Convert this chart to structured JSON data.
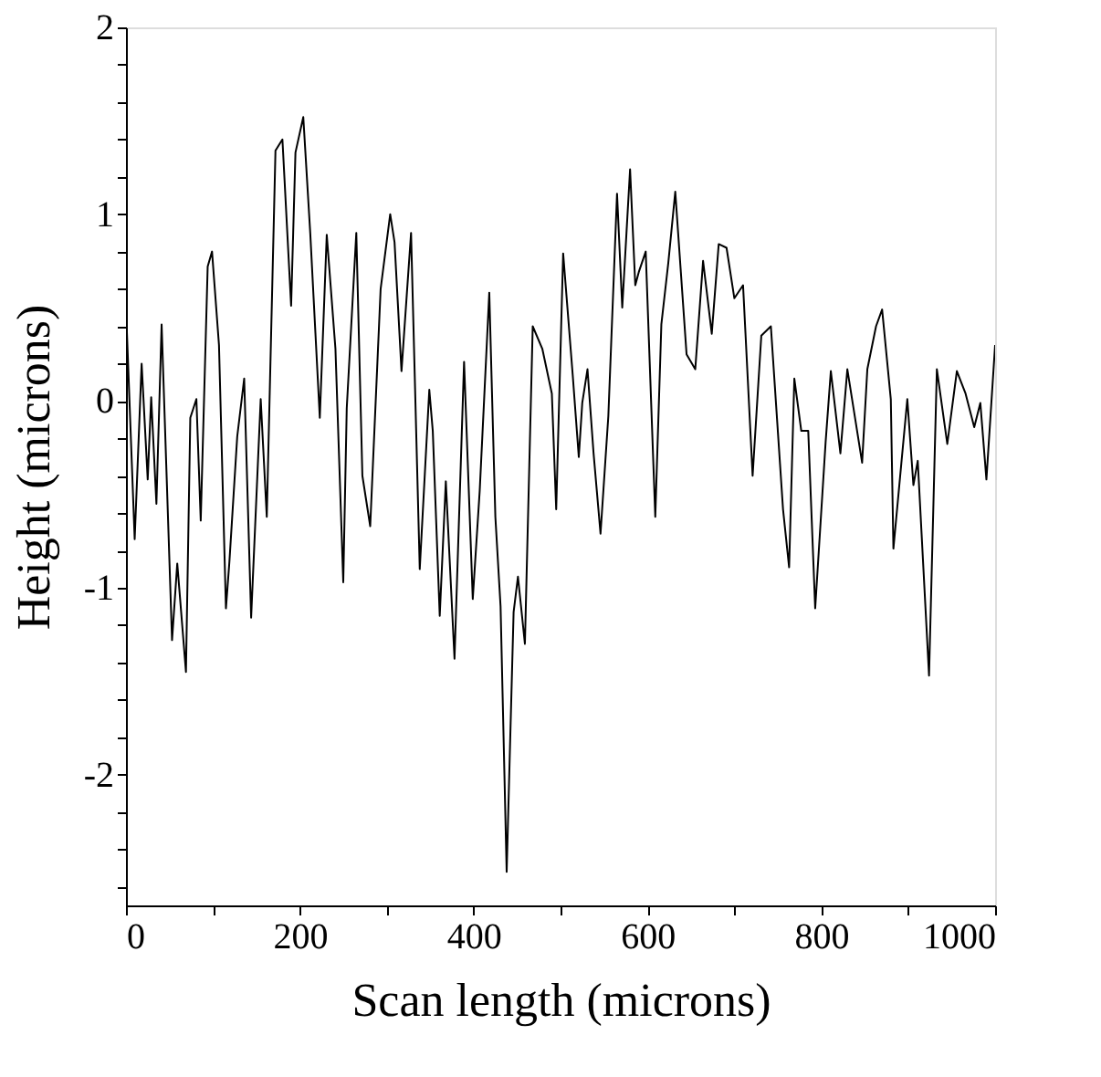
{
  "chart_data": {
    "type": "line",
    "xlabel": "Scan length (microns)",
    "ylabel": "Height (microns)",
    "xlim": [
      0,
      1000
    ],
    "ylim": [
      -2.7,
      2
    ],
    "xticks": [
      0,
      {
        "value": 100,
        "label": null
      },
      200,
      {
        "value": 300,
        "label": null
      },
      400,
      {
        "value": 500,
        "label": null
      },
      600,
      {
        "value": 700,
        "label": null
      },
      800,
      {
        "value": 900,
        "label": null
      },
      1000
    ],
    "yticks": [
      {
        "value": -2.6,
        "label": null
      },
      {
        "value": -2.4,
        "label": null
      },
      {
        "value": -2.2,
        "label": null
      },
      -2,
      {
        "value": -1.8,
        "label": null
      },
      {
        "value": -1.6,
        "label": null
      },
      {
        "value": -1.4,
        "label": null
      },
      {
        "value": -1.2,
        "label": null
      },
      -1,
      {
        "value": -0.8,
        "label": null
      },
      {
        "value": -0.6,
        "label": null
      },
      {
        "value": -0.4,
        "label": null
      },
      {
        "value": -0.2,
        "label": null
      },
      0,
      {
        "value": 0.2,
        "label": null
      },
      {
        "value": 0.4,
        "label": null
      },
      {
        "value": 0.6,
        "label": null
      },
      {
        "value": 0.8,
        "label": null
      },
      1,
      {
        "value": 1.2,
        "label": null
      },
      {
        "value": 1.4,
        "label": null
      },
      {
        "value": 1.6,
        "label": null
      },
      {
        "value": 1.8,
        "label": null
      },
      2
    ],
    "grid": false,
    "line_style": "solid",
    "series": [
      {
        "color": "#000000",
        "x": [
          0,
          10,
          18,
          25,
          29,
          35,
          41,
          53,
          59,
          69,
          74,
          81,
          86,
          94,
          99,
          107,
          115,
          119,
          128,
          136,
          144,
          155,
          162,
          172,
          180,
          190,
          195,
          204,
          212,
          223,
          231,
          241,
          250,
          254,
          265,
          272,
          281,
          293,
          304,
          309,
          317,
          328,
          338,
          349,
          353,
          361,
          368,
          378,
          389,
          399,
          407,
          418,
          425,
          431,
          438,
          446,
          451,
          459,
          468,
          479,
          490,
          495,
          503,
          514,
          521,
          525,
          531,
          538,
          546,
          555,
          565,
          571,
          580,
          586,
          590,
          598,
          609,
          616,
          624,
          632,
          645,
          655,
          664,
          674,
          682,
          691,
          700,
          710,
          721,
          731,
          742,
          756,
          763,
          769,
          777,
          785,
          793,
          805,
          811,
          822,
          830,
          847,
          853,
          863,
          870,
          880,
          883,
          899,
          906,
          911,
          924,
          933,
          945,
          956,
          966,
          976,
          983,
          990,
          1000
        ],
        "values": [
          0.5,
          -0.74,
          0.2,
          -0.42,
          0.02,
          -0.55,
          0.41,
          -1.28,
          -0.87,
          -1.45,
          -0.09,
          0.01,
          -0.64,
          0.72,
          0.8,
          0.3,
          -1.11,
          -0.86,
          -0.19,
          0.12,
          -1.16,
          0.01,
          -0.62,
          1.34,
          1.4,
          0.51,
          1.33,
          1.52,
          0.9,
          -0.09,
          0.89,
          0.28,
          -0.97,
          -0.04,
          0.9,
          -0.4,
          -0.67,
          0.6,
          1.0,
          0.85,
          0.16,
          0.9,
          -0.9,
          0.06,
          -0.16,
          -1.15,
          -0.43,
          -1.38,
          0.21,
          -1.06,
          -0.48,
          0.58,
          -0.62,
          -1.1,
          -2.52,
          -1.13,
          -0.94,
          -1.3,
          0.4,
          0.28,
          0.04,
          -0.58,
          0.79,
          0.14,
          -0.3,
          -0.01,
          0.17,
          -0.28,
          -0.71,
          -0.08,
          1.11,
          0.5,
          1.24,
          0.62,
          0.69,
          0.8,
          -0.62,
          0.41,
          0.74,
          1.12,
          0.25,
          0.17,
          0.75,
          0.36,
          0.84,
          0.82,
          0.55,
          0.62,
          -0.4,
          0.35,
          0.4,
          -0.58,
          -0.89,
          0.12,
          -0.16,
          -0.16,
          -1.11,
          -0.22,
          0.16,
          -0.28,
          0.17,
          -0.33,
          0.17,
          0.4,
          0.49,
          0.01,
          -0.79,
          0.01,
          -0.45,
          -0.32,
          -1.47,
          0.17,
          -0.23,
          0.16,
          0.04,
          -0.14,
          -0.01,
          -0.42,
          0.3
        ]
      }
    ]
  }
}
